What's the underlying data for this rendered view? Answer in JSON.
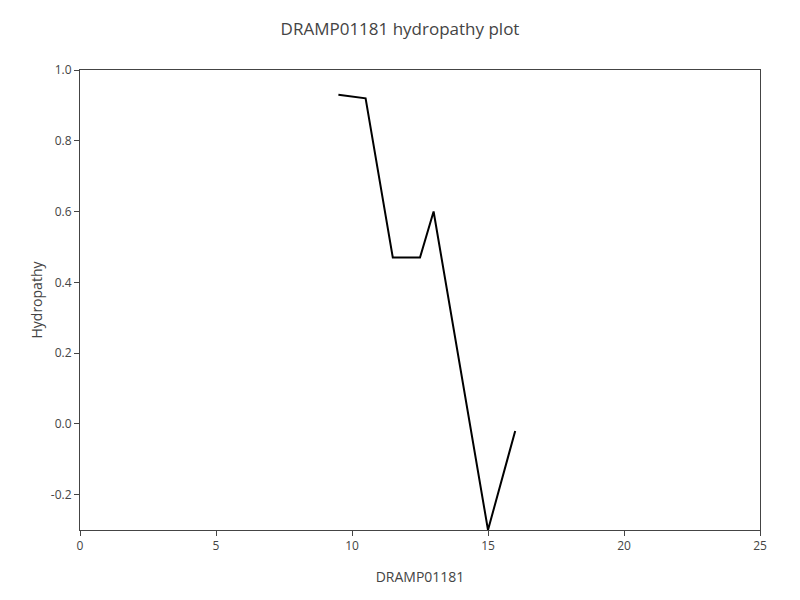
{
  "chart_data": {
    "type": "line",
    "title": "DRAMP01181 hydropathy plot",
    "xlabel": "DRAMP01181",
    "ylabel": "Hydropathy",
    "x": [
      9.5,
      10.5,
      11.5,
      12.0,
      12.5,
      13.0,
      15.0,
      16.0
    ],
    "values": [
      0.93,
      0.92,
      0.47,
      0.47,
      0.47,
      0.6,
      -0.3,
      -0.02
    ],
    "color": "#000000",
    "xlim": [
      0,
      25
    ],
    "xticks": [
      0,
      5,
      10,
      15,
      20,
      25
    ],
    "ylim": [
      -0.3,
      1.0
    ],
    "yticks": [
      -0.2,
      {
        "value": 0.0,
        "label": "0.0"
      },
      0.2,
      0.4,
      0.6,
      0.8,
      {
        "value": 1.0,
        "label": "1.0"
      }
    ],
    "grid": false
  }
}
